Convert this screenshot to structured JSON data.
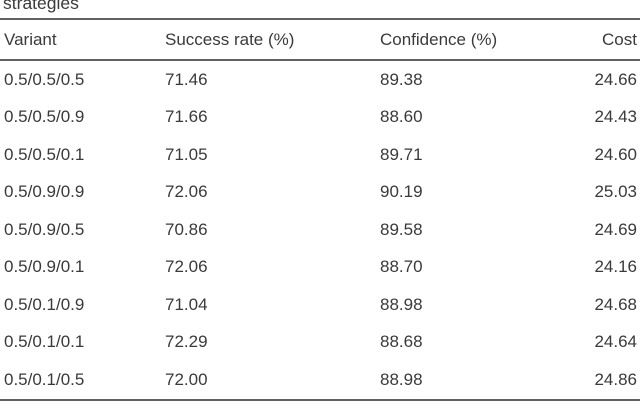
{
  "caption": {
    "text": "strategies"
  },
  "table": {
    "columns": [
      "Variant",
      "Success rate (%)",
      "Confidence (%)",
      "Cost"
    ],
    "rows": [
      [
        "0.5/0.5/0.5",
        "71.46",
        "89.38",
        "24.66"
      ],
      [
        "0.5/0.5/0.9",
        "71.66",
        "88.60",
        "24.43"
      ],
      [
        "0.5/0.5/0.1",
        "71.05",
        "89.71",
        "24.60"
      ],
      [
        "0.5/0.9/0.9",
        "72.06",
        "90.19",
        "25.03"
      ],
      [
        "0.5/0.9/0.5",
        "70.86",
        "89.58",
        "24.69"
      ],
      [
        "0.5/0.9/0.1",
        "72.06",
        "88.70",
        "24.16"
      ],
      [
        "0.5/0.1/0.9",
        "71.04",
        "88.98",
        "24.68"
      ],
      [
        "0.5/0.1/0.1",
        "72.29",
        "88.68",
        "24.64"
      ],
      [
        "0.5/0.1/0.5",
        "72.00",
        "88.98",
        "24.86"
      ]
    ]
  }
}
